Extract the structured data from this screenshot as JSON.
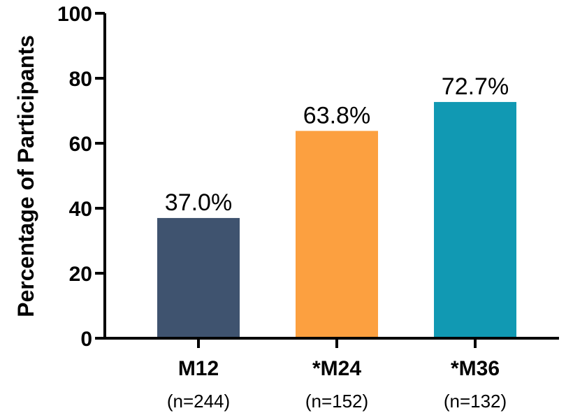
{
  "chart_data": {
    "type": "bar",
    "title": "",
    "xlabel": "",
    "ylabel": "Percentage of Participants",
    "ylim": [
      0,
      100
    ],
    "yticks": [
      0,
      20,
      40,
      60,
      80,
      100
    ],
    "ytick_labels": [
      "0",
      "20",
      "40",
      "60",
      "80",
      "100"
    ],
    "categories": [
      "M12",
      "*M24",
      "*M36"
    ],
    "category_sublabels": [
      "(n=244)",
      "(n=152)",
      "(n=132)"
    ],
    "values": [
      37.0,
      63.8,
      72.7
    ],
    "data_labels": [
      "37.0%",
      "63.8%",
      "72.7%"
    ],
    "colors": [
      "#3f536f",
      "#fca040",
      "#1199b3"
    ],
    "grid": false,
    "legend": "none"
  }
}
